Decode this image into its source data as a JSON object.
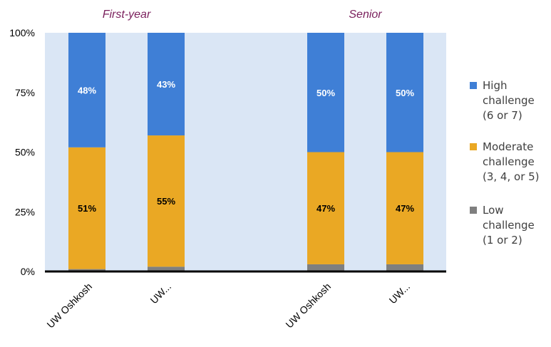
{
  "chart_data": {
    "type": "bar",
    "stacked": true,
    "groups": [
      {
        "label": "First-year",
        "categories": [
          "UW Oshkosh",
          "UW..."
        ]
      },
      {
        "label": "Senior",
        "categories": [
          "UW Oshkosh",
          "UW..."
        ]
      }
    ],
    "categories": [
      "UW Oshkosh",
      "UW...",
      "UW Oshkosh",
      "UW..."
    ],
    "series": [
      {
        "name": "Low challenge (1 or 2)",
        "legend_lines": [
          "Low",
          "challenge",
          "(1 or 2)"
        ],
        "color": "#7f7f7f",
        "values": [
          1,
          2,
          3,
          3
        ],
        "labels": [
          "",
          "",
          "",
          ""
        ]
      },
      {
        "name": "Moderate challenge (3, 4, or 5)",
        "legend_lines": [
          "Moderate",
          "challenge",
          "(3, 4, or 5)"
        ],
        "color": "#eaa824",
        "values": [
          51,
          55,
          47,
          47
        ],
        "labels": [
          "51%",
          "55%",
          "47%",
          "47%"
        ]
      },
      {
        "name": "High challenge (6 or 7)",
        "legend_lines": [
          "High",
          "challenge",
          "(6 or 7)"
        ],
        "color": "#3f7fd6",
        "values": [
          48,
          43,
          50,
          50
        ],
        "labels": [
          "48%",
          "43%",
          "50%",
          "50%"
        ]
      }
    ],
    "ylim": [
      0,
      100
    ],
    "y_ticks": [
      "0%",
      "25%",
      "50%",
      "75%",
      "100%"
    ],
    "plot_background": "#dae6f5",
    "legend_position": "right"
  }
}
